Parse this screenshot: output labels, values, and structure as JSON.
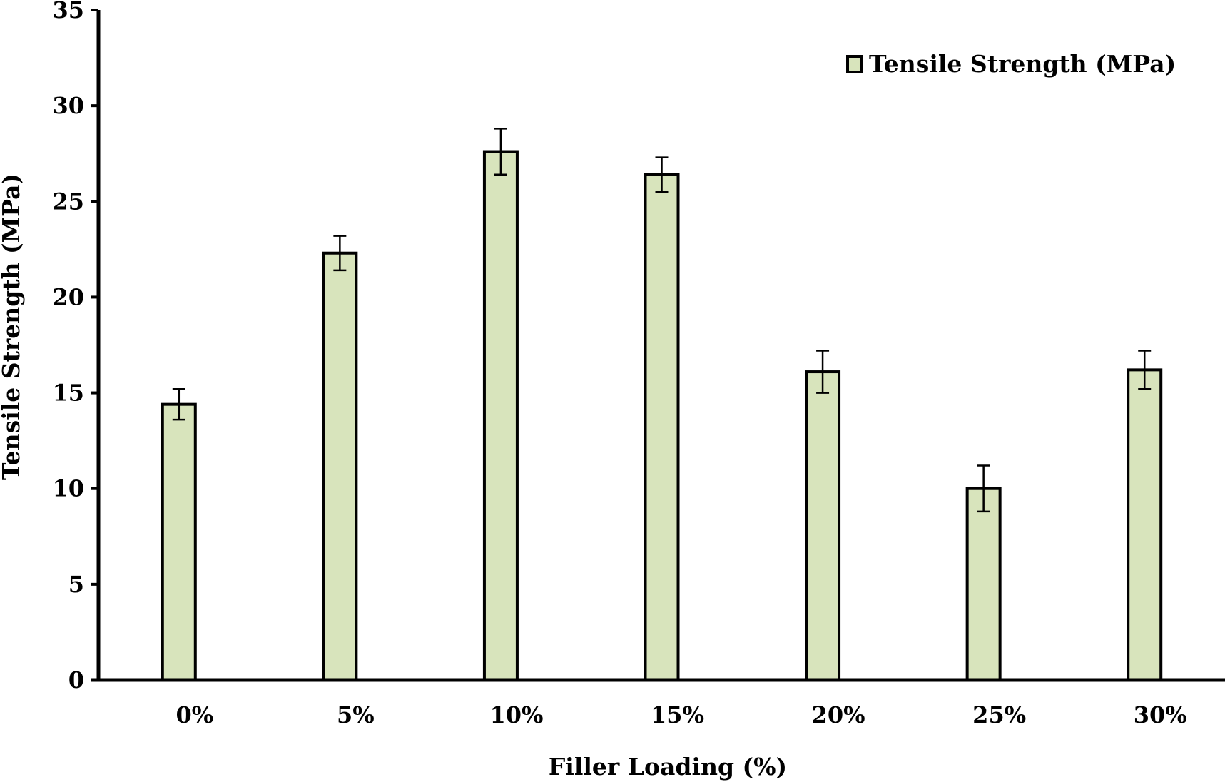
{
  "chart_data": {
    "type": "bar",
    "categories": [
      "0%",
      "5%",
      "10%",
      "15%",
      "20%",
      "25%",
      "30%"
    ],
    "series": [
      {
        "name": "Tensile Strength (MPa)",
        "values": [
          14.4,
          22.3,
          27.6,
          26.4,
          16.1,
          10.0,
          16.2
        ],
        "error": [
          0.8,
          0.9,
          1.2,
          0.9,
          1.1,
          1.2,
          1.0
        ]
      }
    ],
    "title": "",
    "xlabel": "Filler Loading (%)",
    "ylabel": "Tensile Strength (MPa)",
    "ylim": [
      0,
      35
    ],
    "yticks": [
      "0",
      "5",
      "10",
      "15",
      "20",
      "25",
      "30",
      "35"
    ],
    "grid": false,
    "legend": "top-right",
    "bar_color": "#d8e4bc",
    "bar_edge_color": "#000000"
  }
}
